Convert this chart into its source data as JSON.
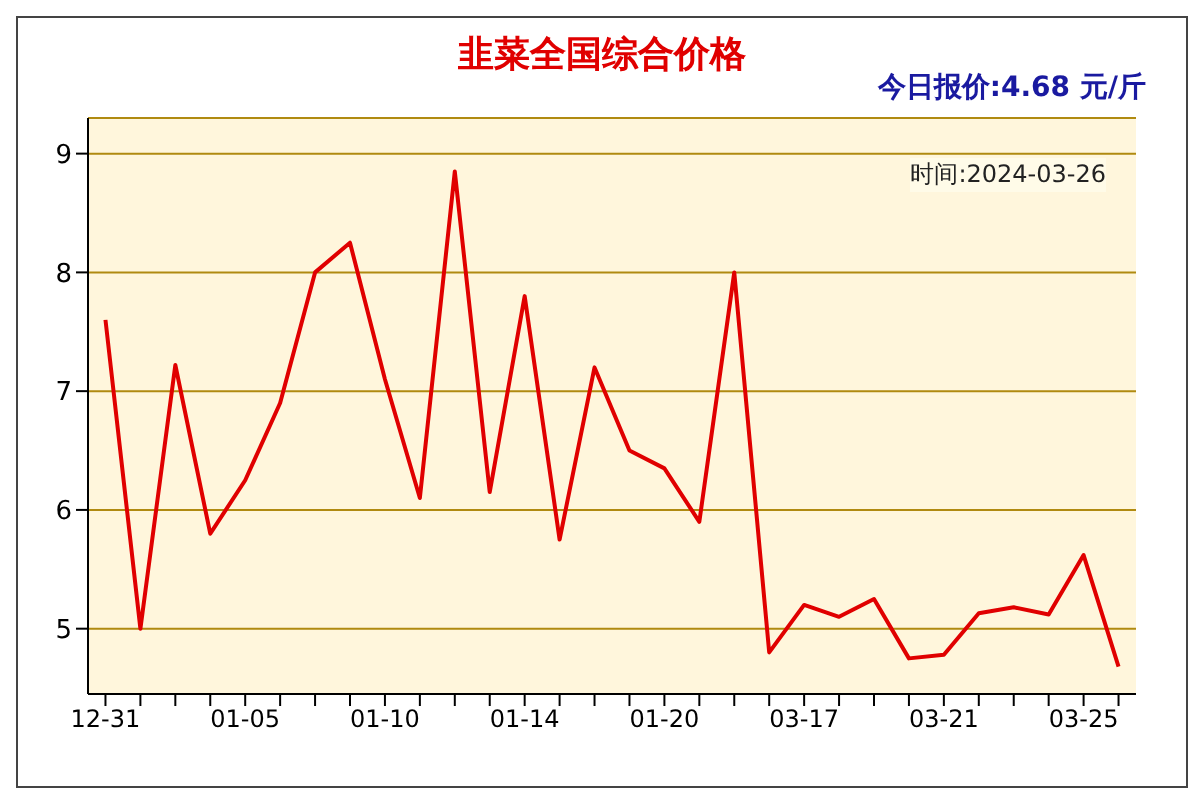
{
  "chart_data": {
    "type": "line",
    "title": "韭菜全国综合价格",
    "subtitle": "今日报价:4.68 元/斤",
    "annotations": [
      "时间:2024-03-26"
    ],
    "categories": [
      "12-31",
      null,
      null,
      null,
      "01-05",
      null,
      null,
      null,
      "01-10",
      null,
      null,
      null,
      "01-14",
      null,
      null,
      null,
      "01-20",
      null,
      null,
      null,
      "03-17",
      null,
      null,
      null,
      "03-21",
      null,
      null,
      null,
      "03-25",
      null
    ],
    "series": [
      {
        "color": "#e00000",
        "values": [
          7.6,
          5.0,
          7.22,
          5.8,
          6.25,
          6.9,
          8.0,
          8.25,
          7.1,
          6.1,
          8.85,
          6.15,
          7.8,
          5.75,
          7.2,
          6.5,
          6.35,
          5.9,
          8.0,
          4.8,
          5.2,
          5.1,
          5.25,
          4.75,
          4.78,
          5.13,
          5.18,
          5.12,
          5.62,
          4.68
        ]
      }
    ],
    "ylim": [
      4.45,
      9.3
    ],
    "yticks": [
      5,
      6,
      7,
      8,
      9
    ],
    "grid": "y",
    "legend": false,
    "marker": "none",
    "line_style": "solid"
  }
}
